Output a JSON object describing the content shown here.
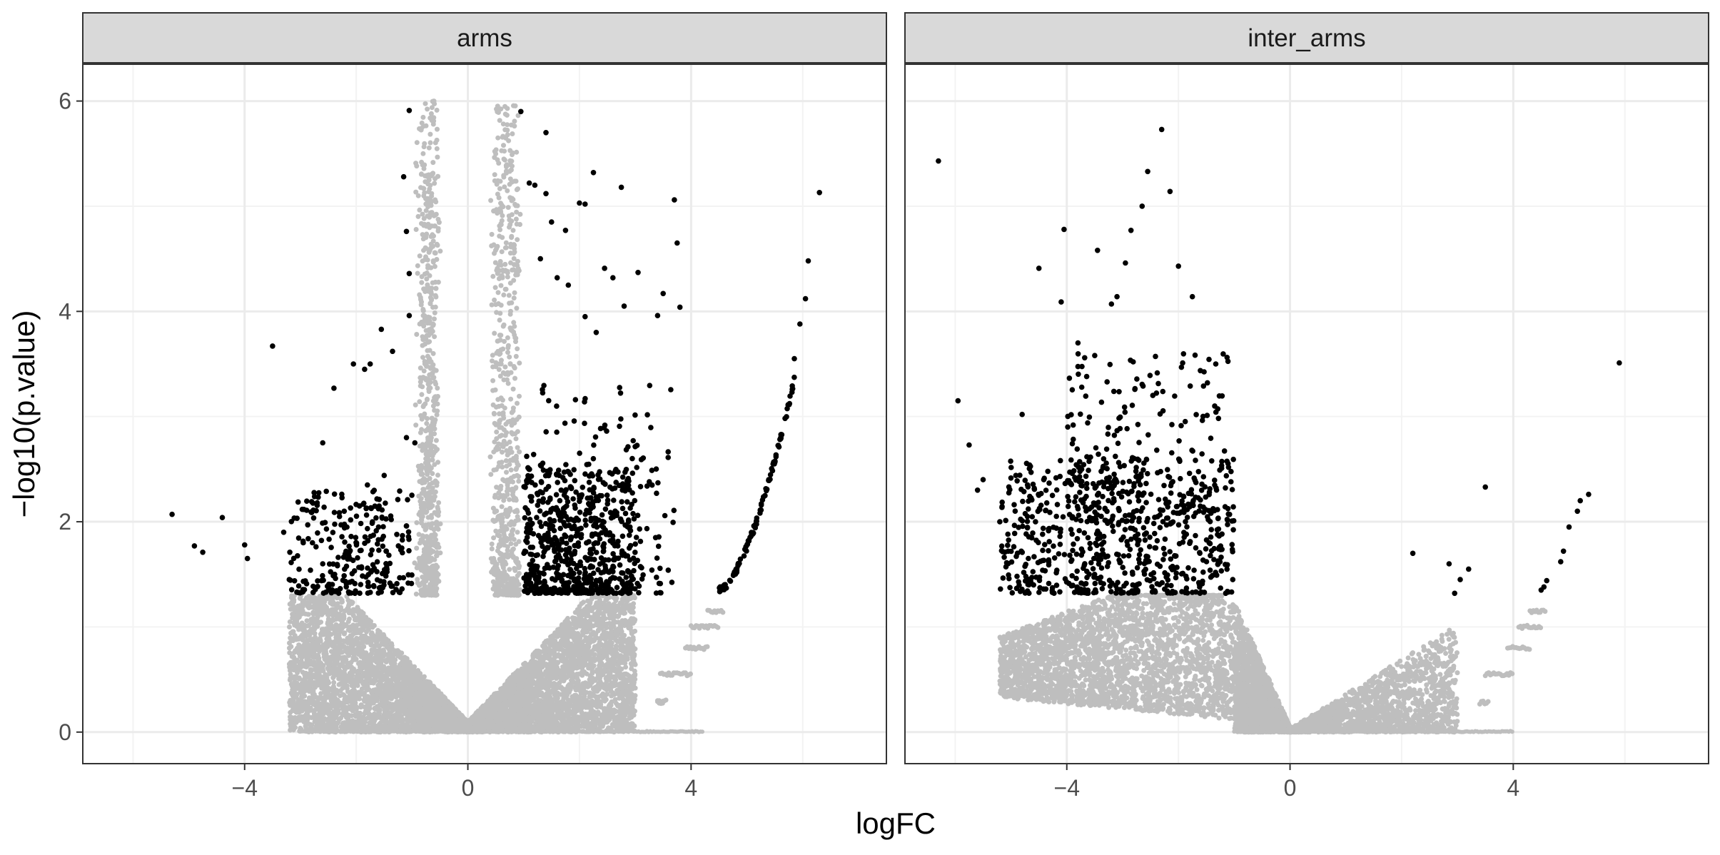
{
  "chart_data": {
    "type": "scatter",
    "layout": "facet-wrap",
    "xlabel": "logFC",
    "ylabel": "−log10(p.value)",
    "xlim": [
      -6.9,
      7.5
    ],
    "ylim": [
      -0.3,
      6.35
    ],
    "x_ticks": [
      -4,
      0,
      4
    ],
    "x_tick_labels": [
      "−4",
      "0",
      "4"
    ],
    "y_ticks": [
      0,
      2,
      4,
      6
    ],
    "y_tick_labels": [
      "0",
      "2",
      "4",
      "6"
    ],
    "grid": true,
    "significance_threshold": {
      "abs_logFC": 1,
      "neg_log10_p": 1.3
    },
    "colors": {
      "significant": "#000000",
      "not_significant": "#bebebe",
      "strip_fill": "#d9d9d9",
      "panel_border": "#333333",
      "grid_major": "#ebebeb",
      "grid_minor": "#f3f3f3"
    },
    "facets": [
      {
        "label": "arms",
        "significant_points": [
          [
            -5.3,
            2.07
          ],
          [
            -4.9,
            1.77
          ],
          [
            -4.75,
            1.71
          ],
          [
            -4.4,
            2.04
          ],
          [
            -4.0,
            1.78
          ],
          [
            -3.95,
            1.65
          ],
          [
            -3.5,
            3.67
          ],
          [
            -3.3,
            1.9
          ],
          [
            -3.2,
            1.45
          ],
          [
            -2.95,
            1.8
          ],
          [
            -2.7,
            2.18
          ],
          [
            -2.6,
            2.75
          ],
          [
            -2.4,
            3.27
          ],
          [
            -2.3,
            2.05
          ],
          [
            -2.05,
            3.5
          ],
          [
            -1.85,
            3.45
          ],
          [
            -1.75,
            3.5
          ],
          [
            -1.55,
            3.83
          ],
          [
            -1.5,
            2.44
          ],
          [
            -1.35,
            3.62
          ],
          [
            -1.1,
            2.8
          ],
          [
            -1.05,
            3.96
          ],
          [
            -1.05,
            4.36
          ],
          [
            -1.1,
            4.76
          ],
          [
            -1.05,
            5.91
          ],
          [
            -1.15,
            5.28
          ],
          [
            -0.95,
            2.75
          ],
          [
            -1.8,
            2.35
          ],
          [
            -1.6,
            1.95
          ],
          [
            -2.6,
            1.6
          ]
        ],
        "significant_clusters": [
          {
            "x": [
              -3.2,
              -1.0
            ],
            "y": [
              1.32,
              2.3
            ],
            "count": 260
          },
          {
            "x": [
              1.0,
              3.0
            ],
            "y": [
              1.32,
              2.5
            ],
            "count": 560
          },
          {
            "x": [
              1.0,
              3.7
            ],
            "y": [
              1.32,
              3.3
            ],
            "count": 200
          }
        ],
        "significant_extra": [
          [
            0.95,
            5.9
          ],
          [
            1.1,
            5.22
          ],
          [
            1.2,
            5.2
          ],
          [
            1.4,
            5.7
          ],
          [
            1.4,
            5.12
          ],
          [
            1.5,
            4.85
          ],
          [
            1.6,
            4.32
          ],
          [
            1.75,
            4.77
          ],
          [
            2.0,
            5.03
          ],
          [
            2.1,
            5.02
          ],
          [
            2.25,
            5.32
          ],
          [
            2.45,
            4.41
          ],
          [
            2.6,
            4.32
          ],
          [
            2.75,
            5.18
          ],
          [
            2.8,
            4.05
          ],
          [
            3.05,
            4.37
          ],
          [
            3.4,
            3.96
          ],
          [
            3.5,
            4.17
          ],
          [
            3.7,
            5.06
          ],
          [
            3.75,
            4.65
          ],
          [
            3.8,
            4.04
          ],
          [
            1.8,
            4.25
          ],
          [
            2.1,
            3.95
          ],
          [
            2.3,
            3.8
          ],
          [
            1.3,
            4.5
          ],
          [
            6.3,
            5.13
          ],
          [
            6.1,
            4.48
          ],
          [
            6.05,
            4.12
          ],
          [
            5.95,
            3.88
          ],
          [
            5.85,
            3.55
          ]
        ],
        "arc": {
          "x_start": 4.5,
          "x_end": 5.85,
          "y_start": 1.35,
          "y_end": 3.35,
          "count": 110
        },
        "not_significant": {
          "cone_lower": {
            "x": [
              -3.2,
              3.0
            ],
            "y": [
              0.0,
              1.3
            ],
            "count": 6500
          },
          "spine_left": {
            "x": [
              -0.9,
              -0.3
            ],
            "y": [
              1.3,
              6.0
            ],
            "count": 700
          },
          "spine_right": {
            "x": [
              0.3,
              0.95
            ],
            "y": [
              1.3,
              6.0
            ],
            "count": 650
          },
          "tail_steps": [
            {
              "x": [
                3.4,
                3.5
              ],
              "y": 0.28
            },
            {
              "x": [
                3.4,
                3.55
              ],
              "y": 0.29
            },
            {
              "x": [
                3.45,
                4.0
              ],
              "y": 0.55
            },
            {
              "x": [
                3.9,
                4.3
              ],
              "y": 0.8
            },
            {
              "x": [
                4.0,
                4.5
              ],
              "y": 1.0
            },
            {
              "x": [
                4.3,
                4.6
              ],
              "y": 1.15
            }
          ],
          "floor": {
            "x": [
              -3.0,
              4.2
            ],
            "y": 0.0
          }
        }
      },
      {
        "label": "inter_arms",
        "significant_points": [
          [
            -6.3,
            5.43
          ],
          [
            -5.95,
            3.15
          ],
          [
            -5.75,
            2.73
          ],
          [
            -5.5,
            2.4
          ],
          [
            -5.2,
            2.0
          ],
          [
            -5.05,
            1.72
          ],
          [
            -4.8,
            3.02
          ],
          [
            -4.5,
            4.41
          ],
          [
            -4.1,
            4.09
          ],
          [
            -4.05,
            4.78
          ],
          [
            -3.8,
            3.7
          ],
          [
            -3.5,
            3.58
          ],
          [
            -3.45,
            4.58
          ],
          [
            -3.2,
            4.07
          ],
          [
            -3.1,
            4.14
          ],
          [
            -2.95,
            4.46
          ],
          [
            -2.85,
            4.77
          ],
          [
            -2.65,
            5.0
          ],
          [
            -2.55,
            5.33
          ],
          [
            -2.3,
            5.73
          ],
          [
            -2.15,
            5.14
          ],
          [
            -2.0,
            4.43
          ],
          [
            -1.75,
            4.14
          ],
          [
            -1.55,
            3.29
          ],
          [
            -1.35,
            3.1
          ],
          [
            -5.6,
            2.3
          ],
          [
            3.5,
            2.33
          ],
          [
            2.2,
            1.7
          ],
          [
            2.85,
            1.6
          ],
          [
            3.2,
            1.55
          ],
          [
            5.9,
            3.51
          ],
          [
            5.35,
            2.26
          ],
          [
            5.2,
            2.2
          ],
          [
            5.15,
            2.1
          ],
          [
            5.0,
            1.95
          ],
          [
            4.9,
            1.72
          ],
          [
            4.85,
            1.62
          ],
          [
            4.6,
            1.44
          ],
          [
            4.55,
            1.38
          ],
          [
            4.5,
            1.35
          ],
          [
            2.95,
            1.32
          ],
          [
            3.05,
            1.45
          ]
        ],
        "significant_clusters": [
          {
            "x": [
              -5.2,
              -1.0
            ],
            "y": [
              1.32,
              2.6
            ],
            "count": 650
          },
          {
            "x": [
              -4.0,
              -1.1
            ],
            "y": [
              2.0,
              3.6
            ],
            "count": 220
          }
        ],
        "not_significant": {
          "cone_lower": {
            "x": [
              -5.2,
              -1.0
            ],
            "y": [
              0.15,
              1.3
            ],
            "count": 2800
          },
          "v_left": {
            "x": [
              -1.0,
              0.0
            ],
            "y": [
              0.0,
              1.3
            ],
            "count": 1800
          },
          "v_right": {
            "x": [
              0.0,
              3.0
            ],
            "y": [
              0.0,
              1.1
            ],
            "count": 1500
          },
          "tail_steps": [
            {
              "x": [
                3.4,
                3.55
              ],
              "y": 0.28
            },
            {
              "x": [
                3.5,
                4.0
              ],
              "y": 0.55
            },
            {
              "x": [
                3.9,
                4.3
              ],
              "y": 0.8
            },
            {
              "x": [
                4.1,
                4.5
              ],
              "y": 1.0
            },
            {
              "x": [
                4.3,
                4.6
              ],
              "y": 1.15
            }
          ],
          "floor": {
            "x": [
              -1.0,
              4.0
            ],
            "y": 0.0
          }
        }
      }
    ]
  }
}
